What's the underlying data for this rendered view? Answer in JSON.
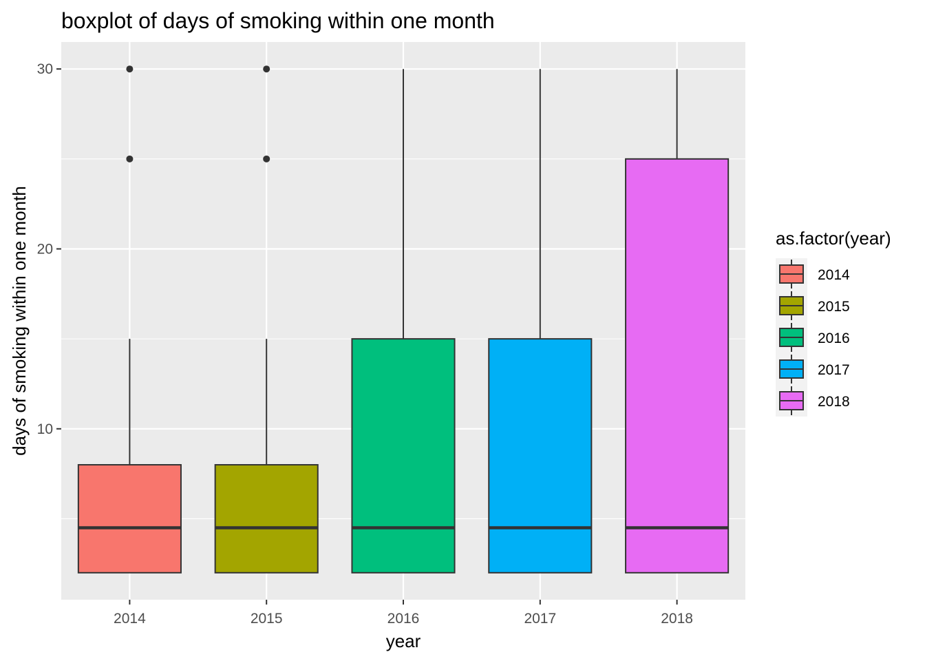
{
  "chart_data": {
    "type": "boxplot",
    "title": "boxplot of days of smoking within one month",
    "xlabel": "year",
    "ylabel": "days of smoking within one month",
    "categories": [
      "2014",
      "2015",
      "2016",
      "2017",
      "2018"
    ],
    "y_ticks": [
      10,
      20,
      30
    ],
    "y_tick_labels": [
      "10",
      "20",
      "30"
    ],
    "ylim": [
      0.5,
      31.5
    ],
    "grid": true,
    "legend": {
      "title": "as.factor(year)",
      "position": "right",
      "entries": [
        "2014",
        "2015",
        "2016",
        "2017",
        "2018"
      ]
    },
    "colors": [
      "#F8766D",
      "#A3A500",
      "#00BF7D",
      "#00B0F6",
      "#E76BF3"
    ],
    "boxes": [
      {
        "category": "2014",
        "lower_whisker": 2,
        "q1": 2,
        "median": 4.5,
        "q3": 8,
        "upper_whisker": 15,
        "outliers": [
          25,
          30
        ]
      },
      {
        "category": "2015",
        "lower_whisker": 2,
        "q1": 2,
        "median": 4.5,
        "q3": 8,
        "upper_whisker": 15,
        "outliers": [
          25,
          30
        ]
      },
      {
        "category": "2016",
        "lower_whisker": 2,
        "q1": 2,
        "median": 4.5,
        "q3": 15,
        "upper_whisker": 30,
        "outliers": []
      },
      {
        "category": "2017",
        "lower_whisker": 2,
        "q1": 2,
        "median": 4.5,
        "q3": 15,
        "upper_whisker": 30,
        "outliers": []
      },
      {
        "category": "2018",
        "lower_whisker": 2,
        "q1": 2,
        "median": 4.5,
        "q3": 25,
        "upper_whisker": 30,
        "outliers": []
      }
    ]
  }
}
